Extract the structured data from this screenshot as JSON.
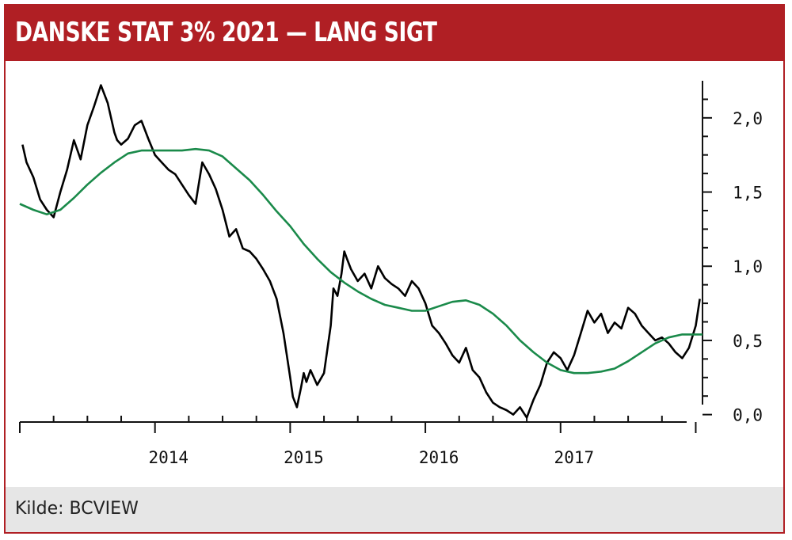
{
  "header": {
    "title": "DANSKE STAT 3% 2021 — LANG SIGT"
  },
  "footer": {
    "source": "Kilde: BCVIEW"
  },
  "colors": {
    "brand": "#b01f24",
    "price_line": "#000000",
    "average_line": "#1a8a4a",
    "footer_bg": "#e6e6e6"
  },
  "chart_data": {
    "type": "line",
    "title": "DANSKE STAT 3% 2021 — LANG SIGT",
    "xlabel": "",
    "ylabel": "",
    "x_axis": {
      "range": [
        2013.0,
        2018.05
      ],
      "labeled_ticks": [
        2014,
        2015,
        2016,
        2017
      ],
      "tick_labels": [
        "2014",
        "2015",
        "2016",
        "2017"
      ]
    },
    "y_axis": {
      "range": [
        -0.05,
        2.25
      ],
      "position": "right",
      "ticks": [
        0.0,
        0.5,
        1.0,
        1.5,
        2.0
      ],
      "tick_labels": [
        "0,0",
        "0,5",
        "1,0",
        "1,5",
        "2,0"
      ]
    },
    "grid": false,
    "legend": "none",
    "series": [
      {
        "style": "black",
        "x": [
          2013.02,
          2013.05,
          2013.1,
          2013.15,
          2013.2,
          2013.25,
          2013.3,
          2013.35,
          2013.4,
          2013.45,
          2013.5,
          2013.55,
          2013.6,
          2013.65,
          2013.7,
          2013.72,
          2013.75,
          2013.8,
          2013.85,
          2013.9,
          2013.95,
          2014.0,
          2014.05,
          2014.1,
          2014.15,
          2014.2,
          2014.25,
          2014.3,
          2014.35,
          2014.4,
          2014.45,
          2014.5,
          2014.55,
          2014.6,
          2014.65,
          2014.7,
          2014.75,
          2014.8,
          2014.85,
          2014.9,
          2014.95,
          2015.0,
          2015.02,
          2015.05,
          2015.08,
          2015.1,
          2015.12,
          2015.15,
          2015.2,
          2015.25,
          2015.3,
          2015.32,
          2015.35,
          2015.38,
          2015.4,
          2015.42,
          2015.45,
          2015.5,
          2015.55,
          2015.6,
          2015.65,
          2015.7,
          2015.75,
          2015.8,
          2015.85,
          2015.9,
          2015.95,
          2016.0,
          2016.05,
          2016.1,
          2016.15,
          2016.2,
          2016.25,
          2016.3,
          2016.35,
          2016.4,
          2016.45,
          2016.5,
          2016.55,
          2016.6,
          2016.65,
          2016.7,
          2016.75,
          2016.8,
          2016.85,
          2016.9,
          2016.95,
          2017.0,
          2017.05,
          2017.1,
          2017.15,
          2017.2,
          2017.25,
          2017.3,
          2017.35,
          2017.4,
          2017.45,
          2017.5,
          2017.55,
          2017.6,
          2017.65,
          2017.7,
          2017.75,
          2017.8,
          2017.85,
          2017.9,
          2017.95,
          2018.0,
          2018.03
        ],
        "values": [
          1.82,
          1.7,
          1.6,
          1.45,
          1.38,
          1.33,
          1.5,
          1.65,
          1.85,
          1.72,
          1.95,
          2.08,
          2.22,
          2.1,
          1.9,
          1.85,
          1.82,
          1.86,
          1.95,
          1.98,
          1.86,
          1.75,
          1.7,
          1.65,
          1.62,
          1.55,
          1.48,
          1.42,
          1.7,
          1.62,
          1.52,
          1.38,
          1.2,
          1.25,
          1.12,
          1.1,
          1.05,
          0.98,
          0.9,
          0.78,
          0.55,
          0.25,
          0.12,
          0.05,
          0.18,
          0.28,
          0.22,
          0.3,
          0.2,
          0.28,
          0.6,
          0.85,
          0.8,
          0.95,
          1.1,
          1.05,
          0.98,
          0.9,
          0.95,
          0.85,
          1.0,
          0.92,
          0.88,
          0.85,
          0.8,
          0.9,
          0.85,
          0.75,
          0.6,
          0.55,
          0.48,
          0.4,
          0.35,
          0.45,
          0.3,
          0.25,
          0.15,
          0.08,
          0.05,
          0.03,
          0.0,
          0.05,
          -0.02,
          0.1,
          0.2,
          0.35,
          0.42,
          0.38,
          0.3,
          0.4,
          0.55,
          0.7,
          0.62,
          0.68,
          0.55,
          0.62,
          0.58,
          0.72,
          0.68,
          0.6,
          0.55,
          0.5,
          0.52,
          0.48,
          0.42,
          0.38,
          0.45,
          0.6,
          0.78
        ]
      },
      {
        "style": "green",
        "x": [
          2013.0,
          2013.1,
          2013.2,
          2013.3,
          2013.4,
          2013.5,
          2013.6,
          2013.7,
          2013.8,
          2013.9,
          2014.0,
          2014.1,
          2014.2,
          2014.3,
          2014.4,
          2014.5,
          2014.6,
          2014.7,
          2014.8,
          2014.9,
          2015.0,
          2015.1,
          2015.2,
          2015.3,
          2015.4,
          2015.5,
          2015.6,
          2015.7,
          2015.8,
          2015.9,
          2016.0,
          2016.1,
          2016.2,
          2016.3,
          2016.4,
          2016.5,
          2016.6,
          2016.7,
          2016.8,
          2016.9,
          2017.0,
          2017.1,
          2017.2,
          2017.3,
          2017.4,
          2017.5,
          2017.6,
          2017.7,
          2017.8,
          2017.9,
          2018.0,
          2018.05
        ],
        "values": [
          1.42,
          1.38,
          1.35,
          1.38,
          1.46,
          1.55,
          1.63,
          1.7,
          1.76,
          1.78,
          1.78,
          1.78,
          1.78,
          1.79,
          1.78,
          1.74,
          1.66,
          1.58,
          1.48,
          1.37,
          1.27,
          1.15,
          1.05,
          0.96,
          0.89,
          0.83,
          0.78,
          0.74,
          0.72,
          0.7,
          0.7,
          0.73,
          0.76,
          0.77,
          0.74,
          0.68,
          0.6,
          0.5,
          0.42,
          0.35,
          0.3,
          0.28,
          0.28,
          0.29,
          0.31,
          0.36,
          0.42,
          0.48,
          0.52,
          0.54,
          0.54,
          0.54
        ]
      }
    ]
  }
}
